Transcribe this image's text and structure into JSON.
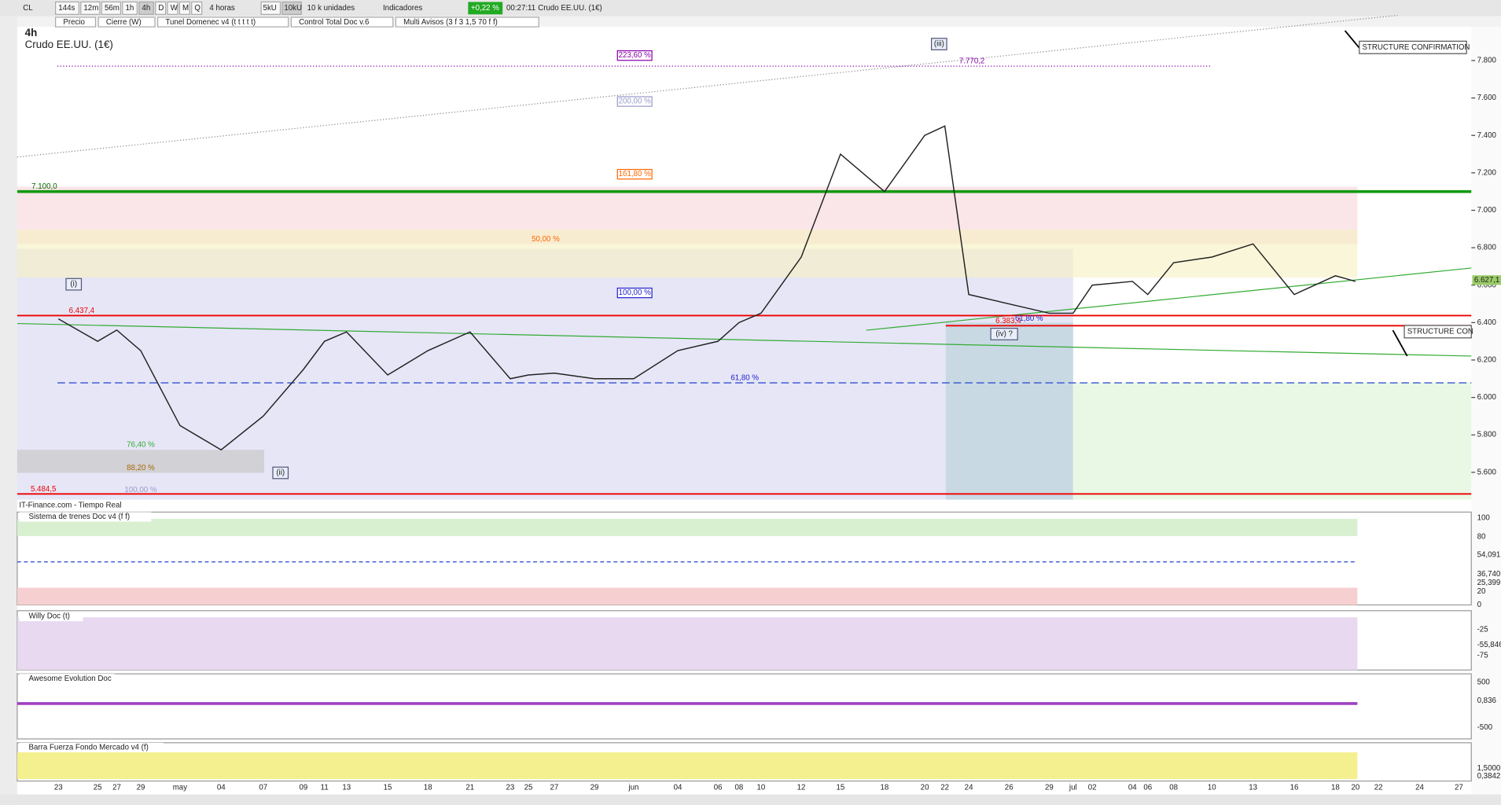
{
  "toolbar": {
    "symbol": "CL",
    "intervals": [
      "144s",
      "12m",
      "56m",
      "1h",
      "4h",
      "D",
      "W",
      "M",
      "Q"
    ],
    "period": "4 horas",
    "units": [
      "5kU",
      "10kU"
    ],
    "units_menu": "10 k unidades",
    "indicators": "Indicadores",
    "change": "+0,22 %",
    "time": "00:27:11",
    "instrument": "Crudo EE.UU. (1€)"
  },
  "legend": [
    "Precio",
    "Cierre (W)",
    "Tunel Domenec v4 (t t t t t)",
    "Control Total Doc v.6",
    "Multi Avisos (3 f 3 1,5 70 f f)"
  ],
  "chart": {
    "timeframe": "4h",
    "title": "Crudo EE.UU. (1€)",
    "source": "IT-Finance.com - Tiempo Real",
    "ylim": [
      5.454,
      7.98
    ],
    "yticks": [
      {
        "value": 7.8,
        "label": "7.800"
      },
      {
        "value": 7.6,
        "label": "7.600"
      },
      {
        "value": 7.4,
        "label": "7.400"
      },
      {
        "value": 7.2,
        "label": "7.200"
      },
      {
        "value": 7.0,
        "label": "7.000"
      },
      {
        "value": 6.8,
        "label": "6.800"
      },
      {
        "value": 6.6,
        "label": "6.600"
      },
      {
        "value": 6.4,
        "label": "6.400"
      },
      {
        "value": 6.2,
        "label": "6.200"
      },
      {
        "value": 6.0,
        "label": "6.000"
      },
      {
        "value": 5.8,
        "label": "5.800"
      },
      {
        "value": 5.6,
        "label": "5.600"
      }
    ],
    "last_price": {
      "value": 6.6271,
      "label": "6.627,1"
    },
    "dates": [
      "23",
      "25",
      "27",
      "29",
      "may",
      "04",
      "07",
      "09",
      "11",
      "13",
      "15",
      "18",
      "21",
      "23",
      "25",
      "27",
      "29",
      "jun",
      "04",
      "06",
      "08",
      "10",
      "12",
      "15",
      "18",
      "20",
      "22",
      "24",
      "26",
      "29",
      "jul",
      "02",
      "04",
      "06",
      "08",
      "10",
      "13",
      "16",
      "18",
      "20",
      "22",
      "24",
      "27"
    ],
    "closes": [
      6.42,
      6.3,
      6.36,
      6.25,
      5.85,
      5.72,
      5.9,
      6.15,
      6.3,
      6.35,
      6.12,
      6.25,
      6.35,
      6.1,
      6.12,
      6.13,
      6.1,
      6.1,
      6.25,
      6.3,
      6.4,
      6.45,
      6.75,
      7.3,
      7.1,
      7.4,
      7.45,
      6.55,
      6.5,
      6.45,
      6.45,
      6.6,
      6.62,
      6.55,
      6.72,
      6.75,
      6.82,
      6.55,
      6.65,
      6.62,
      null,
      null,
      null
    ],
    "levels": [
      {
        "value": 7.7702,
        "label": "7.770,2"
      },
      {
        "value": 7.1,
        "label": "7.100,0"
      },
      {
        "value": 6.4374,
        "label": "6.437,4"
      },
      {
        "value": 6.3834,
        "label": "6.383,4"
      },
      {
        "value": 5.4845,
        "label": "5.484,5"
      }
    ],
    "fib_labels": [
      "223,60 %",
      "200,00 %",
      "161,80 %",
      "50,00 %",
      "100,00 %",
      "61,80 %",
      "76,40 %",
      "88,20 %",
      "100,00 %",
      "61,80 %"
    ],
    "waves": [
      "(i)",
      "(ii)",
      "(iii)",
      "(iv) ?"
    ],
    "notes": [
      "STRUCTURE CONFIRMATION",
      "STRUCTURE CON"
    ]
  },
  "panels": [
    {
      "title": "Sistema de trenes Doc v4 (f f)",
      "ticks": [
        "100",
        "80",
        "54,091",
        "36,740",
        "25,399",
        "20",
        "0"
      ]
    },
    {
      "title": "Willy Doc (t)",
      "ticks": [
        "-25",
        "-55,846",
        "-75"
      ]
    },
    {
      "title": "Awesome Evolution Doc",
      "ticks": [
        "500",
        "0,836",
        "-500"
      ]
    },
    {
      "title": "Barra Fuerza Fondo Mercado v4 (f)",
      "ticks": [
        "1,5000",
        "0,3842"
      ]
    }
  ]
}
